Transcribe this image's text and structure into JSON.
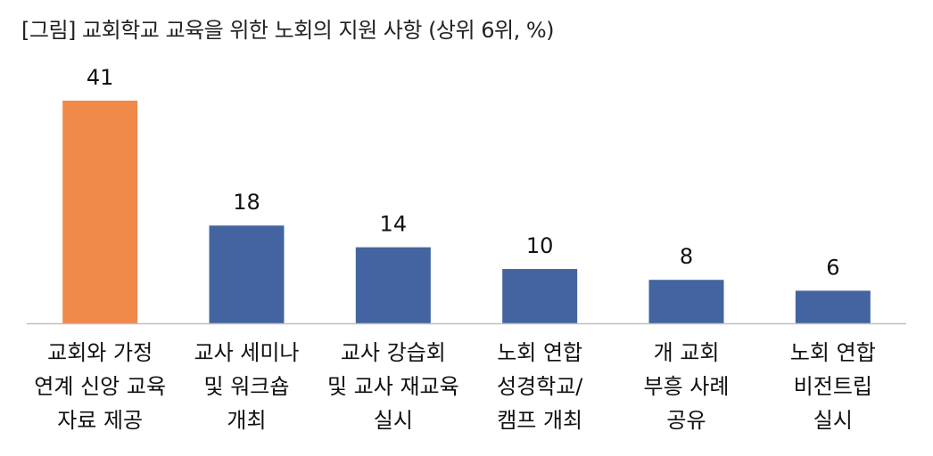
{
  "chart_data": {
    "type": "bar",
    "title": "[그림] 교회학교 교육을 위한 노회의 지원 사항 (상위 6위, %)",
    "categories": [
      [
        "교회와 가정",
        "연계 신앙 교육",
        "자료 제공"
      ],
      [
        "교사 세미나",
        "및 워크숍",
        "개최"
      ],
      [
        "교사 강습회",
        "및 교사 재교육",
        "실시"
      ],
      [
        "노회 연합",
        "성경학교/",
        "캠프 개최"
      ],
      [
        "개 교회",
        "부흥 사례",
        "공유"
      ],
      [
        "노회 연합",
        "비전트립",
        "실시"
      ]
    ],
    "values": [
      41,
      18,
      14,
      10,
      8,
      6
    ],
    "colors": [
      "#F0894A",
      "#4364A0",
      "#4364A0",
      "#4364A0",
      "#4364A0",
      "#4364A0"
    ],
    "ylim": [
      0,
      45
    ],
    "data_labels": true,
    "grid": false,
    "legend": "none"
  }
}
